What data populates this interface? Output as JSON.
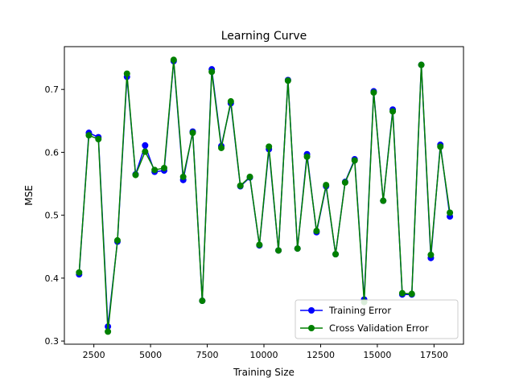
{
  "chart_data": {
    "type": "line",
    "title": "Learning Curve",
    "xlabel": "Training Size",
    "ylabel": "MSE",
    "xlim": [
      1200,
      18800
    ],
    "ylim": [
      0.295,
      0.768
    ],
    "xticks": [
      2500,
      5000,
      7500,
      10000,
      12500,
      15000,
      17500
    ],
    "yticks": [
      0.3,
      0.4,
      0.5,
      0.6,
      0.7
    ],
    "grid": false,
    "legend_position": "lower-right",
    "x": [
      1850,
      2280,
      2700,
      3120,
      3540,
      3960,
      4340,
      4760,
      5180,
      5600,
      6020,
      6440,
      6860,
      7280,
      7700,
      8120,
      8540,
      8960,
      9380,
      9800,
      10220,
      10640,
      11060,
      11480,
      11900,
      12320,
      12740,
      13160,
      13580,
      14000,
      14420,
      14840,
      15260,
      15680,
      16100,
      16520,
      16940,
      17360,
      17780,
      18200
    ],
    "series": [
      {
        "name": "Training Error",
        "color": "#0000ff",
        "values": [
          0.406,
          0.631,
          0.624,
          0.323,
          0.458,
          0.72,
          0.565,
          0.611,
          0.569,
          0.571,
          0.745,
          0.556,
          0.633,
          0.364,
          0.732,
          0.61,
          0.678,
          0.546,
          0.56,
          0.452,
          0.605,
          0.444,
          0.715,
          0.447,
          0.597,
          0.473,
          0.546,
          0.438,
          0.553,
          0.589,
          0.366,
          0.697,
          0.523,
          0.668,
          0.374,
          0.374,
          0.739,
          0.432,
          0.612,
          0.498
        ]
      },
      {
        "name": "Cross Validation Error",
        "color": "#008000",
        "values": [
          0.409,
          0.627,
          0.621,
          0.315,
          0.46,
          0.725,
          0.564,
          0.601,
          0.572,
          0.575,
          0.747,
          0.561,
          0.631,
          0.364,
          0.728,
          0.607,
          0.681,
          0.547,
          0.561,
          0.453,
          0.609,
          0.444,
          0.714,
          0.447,
          0.593,
          0.475,
          0.548,
          0.438,
          0.552,
          0.587,
          0.362,
          0.695,
          0.523,
          0.665,
          0.376,
          0.375,
          0.739,
          0.437,
          0.609,
          0.504
        ]
      }
    ]
  }
}
